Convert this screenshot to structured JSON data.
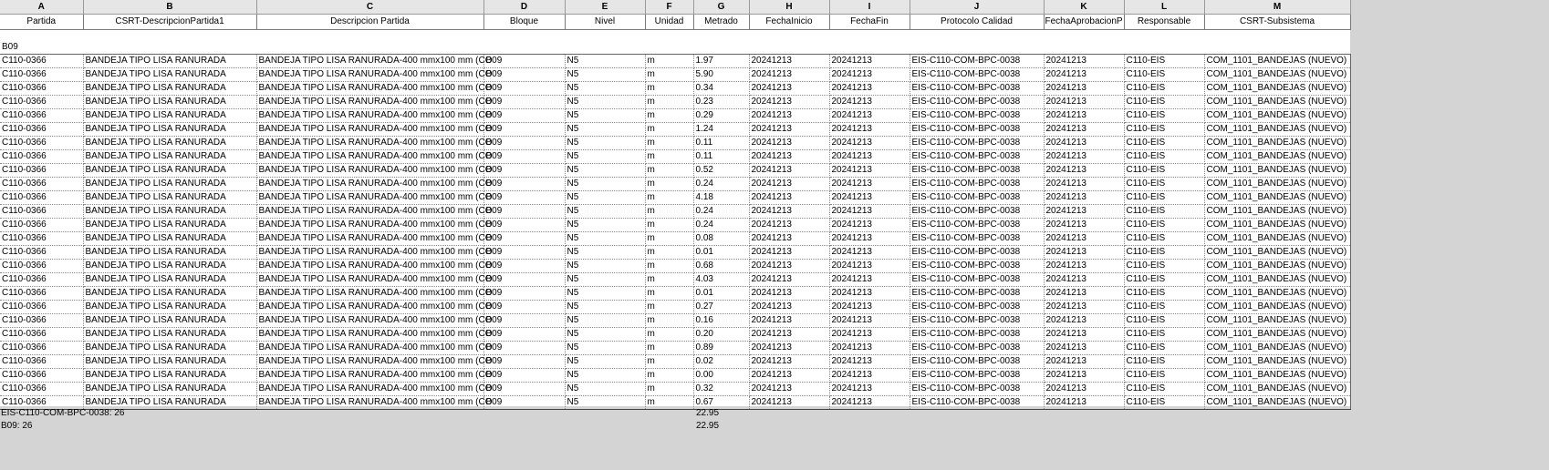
{
  "column_letters": [
    "A",
    "B",
    "C",
    "D",
    "E",
    "F",
    "G",
    "H",
    "I",
    "J",
    "K",
    "L",
    "M"
  ],
  "column_headers": [
    "Partida",
    "CSRT-DescripcionPartida1",
    "Descripcion Partida",
    "Bloque",
    "Nivel",
    "Unidad",
    "Metrado",
    "FechaInicio",
    "FechaFin",
    "Protocolo Calidad",
    "FechaAprobacionP",
    "Responsable",
    "CSRT-Subsistema"
  ],
  "group_label": "B09",
  "rows": [
    [
      "C110-0366",
      "BANDEJA TIPO LISA RANURADA",
      "BANDEJA TIPO LISA RANURADA-400 mmx100 mm (CO",
      "B09",
      "N5",
      "m",
      "1.97",
      "20241213",
      "20241213",
      "EIS-C110-COM-BPC-0038",
      "20241213",
      "C110-EIS",
      "COM_1101_BANDEJAS (NUEVO)"
    ],
    [
      "C110-0366",
      "BANDEJA TIPO LISA RANURADA",
      "BANDEJA TIPO LISA RANURADA-400 mmx100 mm (CO",
      "B09",
      "N5",
      "m",
      "5.90",
      "20241213",
      "20241213",
      "EIS-C110-COM-BPC-0038",
      "20241213",
      "C110-EIS",
      "COM_1101_BANDEJAS (NUEVO)"
    ],
    [
      "C110-0366",
      "BANDEJA TIPO LISA RANURADA",
      "BANDEJA TIPO LISA RANURADA-400 mmx100 mm (CO",
      "B09",
      "N5",
      "m",
      "0.34",
      "20241213",
      "20241213",
      "EIS-C110-COM-BPC-0038",
      "20241213",
      "C110-EIS",
      "COM_1101_BANDEJAS (NUEVO)"
    ],
    [
      "C110-0366",
      "BANDEJA TIPO LISA RANURADA",
      "BANDEJA TIPO LISA RANURADA-400 mmx100 mm (CO",
      "B09",
      "N5",
      "m",
      "0.23",
      "20241213",
      "20241213",
      "EIS-C110-COM-BPC-0038",
      "20241213",
      "C110-EIS",
      "COM_1101_BANDEJAS (NUEVO)"
    ],
    [
      "C110-0366",
      "BANDEJA TIPO LISA RANURADA",
      "BANDEJA TIPO LISA RANURADA-400 mmx100 mm (CO",
      "B09",
      "N5",
      "m",
      "0.29",
      "20241213",
      "20241213",
      "EIS-C110-COM-BPC-0038",
      "20241213",
      "C110-EIS",
      "COM_1101_BANDEJAS (NUEVO)"
    ],
    [
      "C110-0366",
      "BANDEJA TIPO LISA RANURADA",
      "BANDEJA TIPO LISA RANURADA-400 mmx100 mm (CO",
      "B09",
      "N5",
      "m",
      "1.24",
      "20241213",
      "20241213",
      "EIS-C110-COM-BPC-0038",
      "20241213",
      "C110-EIS",
      "COM_1101_BANDEJAS (NUEVO)"
    ],
    [
      "C110-0366",
      "BANDEJA TIPO LISA RANURADA",
      "BANDEJA TIPO LISA RANURADA-400 mmx100 mm (CO",
      "B09",
      "N5",
      "m",
      "0.11",
      "20241213",
      "20241213",
      "EIS-C110-COM-BPC-0038",
      "20241213",
      "C110-EIS",
      "COM_1101_BANDEJAS (NUEVO)"
    ],
    [
      "C110-0366",
      "BANDEJA TIPO LISA RANURADA",
      "BANDEJA TIPO LISA RANURADA-400 mmx100 mm (CO",
      "B09",
      "N5",
      "m",
      "0.11",
      "20241213",
      "20241213",
      "EIS-C110-COM-BPC-0038",
      "20241213",
      "C110-EIS",
      "COM_1101_BANDEJAS (NUEVO)"
    ],
    [
      "C110-0366",
      "BANDEJA TIPO LISA RANURADA",
      "BANDEJA TIPO LISA RANURADA-400 mmx100 mm (CO",
      "B09",
      "N5",
      "m",
      "0.52",
      "20241213",
      "20241213",
      "EIS-C110-COM-BPC-0038",
      "20241213",
      "C110-EIS",
      "COM_1101_BANDEJAS (NUEVO)"
    ],
    [
      "C110-0366",
      "BANDEJA TIPO LISA RANURADA",
      "BANDEJA TIPO LISA RANURADA-400 mmx100 mm (CO",
      "B09",
      "N5",
      "m",
      "0.24",
      "20241213",
      "20241213",
      "EIS-C110-COM-BPC-0038",
      "20241213",
      "C110-EIS",
      "COM_1101_BANDEJAS (NUEVO)"
    ],
    [
      "C110-0366",
      "BANDEJA TIPO LISA RANURADA",
      "BANDEJA TIPO LISA RANURADA-400 mmx100 mm (CO",
      "B09",
      "N5",
      "m",
      "4.18",
      "20241213",
      "20241213",
      "EIS-C110-COM-BPC-0038",
      "20241213",
      "C110-EIS",
      "COM_1101_BANDEJAS (NUEVO)"
    ],
    [
      "C110-0366",
      "BANDEJA TIPO LISA RANURADA",
      "BANDEJA TIPO LISA RANURADA-400 mmx100 mm (CO",
      "B09",
      "N5",
      "m",
      "0.24",
      "20241213",
      "20241213",
      "EIS-C110-COM-BPC-0038",
      "20241213",
      "C110-EIS",
      "COM_1101_BANDEJAS (NUEVO)"
    ],
    [
      "C110-0366",
      "BANDEJA TIPO LISA RANURADA",
      "BANDEJA TIPO LISA RANURADA-400 mmx100 mm (CO",
      "B09",
      "N5",
      "m",
      "0.24",
      "20241213",
      "20241213",
      "EIS-C110-COM-BPC-0038",
      "20241213",
      "C110-EIS",
      "COM_1101_BANDEJAS (NUEVO)"
    ],
    [
      "C110-0366",
      "BANDEJA TIPO LISA RANURADA",
      "BANDEJA TIPO LISA RANURADA-400 mmx100 mm (CO",
      "B09",
      "N5",
      "m",
      "0.08",
      "20241213",
      "20241213",
      "EIS-C110-COM-BPC-0038",
      "20241213",
      "C110-EIS",
      "COM_1101_BANDEJAS (NUEVO)"
    ],
    [
      "C110-0366",
      "BANDEJA TIPO LISA RANURADA",
      "BANDEJA TIPO LISA RANURADA-400 mmx100 mm (CO",
      "B09",
      "N5",
      "m",
      "0.01",
      "20241213",
      "20241213",
      "EIS-C110-COM-BPC-0038",
      "20241213",
      "C110-EIS",
      "COM_1101_BANDEJAS (NUEVO)"
    ],
    [
      "C110-0366",
      "BANDEJA TIPO LISA RANURADA",
      "BANDEJA TIPO LISA RANURADA-400 mmx100 mm (CO",
      "B09",
      "N5",
      "m",
      "0.68",
      "20241213",
      "20241213",
      "EIS-C110-COM-BPC-0038",
      "20241213",
      "C110-EIS",
      "COM_1101_BANDEJAS (NUEVO)"
    ],
    [
      "C110-0366",
      "BANDEJA TIPO LISA RANURADA",
      "BANDEJA TIPO LISA RANURADA-400 mmx100 mm (CO",
      "B09",
      "N5",
      "m",
      "4.03",
      "20241213",
      "20241213",
      "EIS-C110-COM-BPC-0038",
      "20241213",
      "C110-EIS",
      "COM_1101_BANDEJAS (NUEVO)"
    ],
    [
      "C110-0366",
      "BANDEJA TIPO LISA RANURADA",
      "BANDEJA TIPO LISA RANURADA-400 mmx100 mm (CO",
      "B09",
      "N5",
      "m",
      "0.01",
      "20241213",
      "20241213",
      "EIS-C110-COM-BPC-0038",
      "20241213",
      "C110-EIS",
      "COM_1101_BANDEJAS (NUEVO)"
    ],
    [
      "C110-0366",
      "BANDEJA TIPO LISA RANURADA",
      "BANDEJA TIPO LISA RANURADA-400 mmx100 mm (CO",
      "B09",
      "N5",
      "m",
      "0.27",
      "20241213",
      "20241213",
      "EIS-C110-COM-BPC-0038",
      "20241213",
      "C110-EIS",
      "COM_1101_BANDEJAS (NUEVO)"
    ],
    [
      "C110-0366",
      "BANDEJA TIPO LISA RANURADA",
      "BANDEJA TIPO LISA RANURADA-400 mmx100 mm (CO",
      "B09",
      "N5",
      "m",
      "0.16",
      "20241213",
      "20241213",
      "EIS-C110-COM-BPC-0038",
      "20241213",
      "C110-EIS",
      "COM_1101_BANDEJAS (NUEVO)"
    ],
    [
      "C110-0366",
      "BANDEJA TIPO LISA RANURADA",
      "BANDEJA TIPO LISA RANURADA-400 mmx100 mm (CO",
      "B09",
      "N5",
      "m",
      "0.20",
      "20241213",
      "20241213",
      "EIS-C110-COM-BPC-0038",
      "20241213",
      "C110-EIS",
      "COM_1101_BANDEJAS (NUEVO)"
    ],
    [
      "C110-0366",
      "BANDEJA TIPO LISA RANURADA",
      "BANDEJA TIPO LISA RANURADA-400 mmx100 mm (CO",
      "B09",
      "N5",
      "m",
      "0.89",
      "20241213",
      "20241213",
      "EIS-C110-COM-BPC-0038",
      "20241213",
      "C110-EIS",
      "COM_1101_BANDEJAS (NUEVO)"
    ],
    [
      "C110-0366",
      "BANDEJA TIPO LISA RANURADA",
      "BANDEJA TIPO LISA RANURADA-400 mmx100 mm (CO",
      "B09",
      "N5",
      "m",
      "0.02",
      "20241213",
      "20241213",
      "EIS-C110-COM-BPC-0038",
      "20241213",
      "C110-EIS",
      "COM_1101_BANDEJAS (NUEVO)"
    ],
    [
      "C110-0366",
      "BANDEJA TIPO LISA RANURADA",
      "BANDEJA TIPO LISA RANURADA-400 mmx100 mm (CO",
      "B09",
      "N5",
      "m",
      "0.00",
      "20241213",
      "20241213",
      "EIS-C110-COM-BPC-0038",
      "20241213",
      "C110-EIS",
      "COM_1101_BANDEJAS (NUEVO)"
    ],
    [
      "C110-0366",
      "BANDEJA TIPO LISA RANURADA",
      "BANDEJA TIPO LISA RANURADA-400 mmx100 mm (CO",
      "B09",
      "N5",
      "m",
      "0.32",
      "20241213",
      "20241213",
      "EIS-C110-COM-BPC-0038",
      "20241213",
      "C110-EIS",
      "COM_1101_BANDEJAS (NUEVO)"
    ],
    [
      "C110-0366",
      "BANDEJA TIPO LISA RANURADA",
      "BANDEJA TIPO LISA RANURADA-400 mmx100 mm (CO",
      "B09",
      "N5",
      "m",
      "0.67",
      "20241213",
      "20241213",
      "EIS-C110-COM-BPC-0038",
      "20241213",
      "C110-EIS",
      "COM_1101_BANDEJAS (NUEVO)"
    ]
  ],
  "footer": {
    "protocol_label": "EIS-C110-COM-BPC-0038: 26",
    "protocol_total": "22.95",
    "block_label": "B09: 26",
    "block_total": "22.95"
  },
  "colors": {
    "header_bg": "#e6e6e6",
    "outside_bg": "#d4d4d4"
  }
}
